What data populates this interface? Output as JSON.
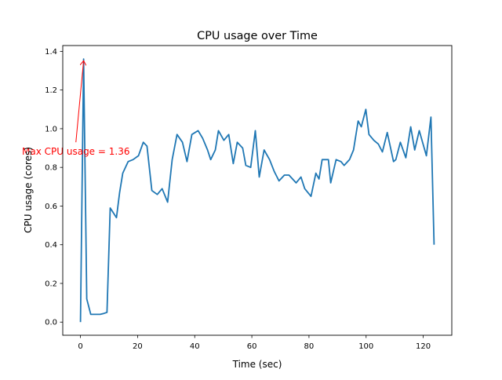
{
  "chart_data": {
    "type": "line",
    "title": "CPU usage over Time",
    "xlabel": "Time (sec)",
    "ylabel": "CPU usage (cores)",
    "xlim": [
      -6.2,
      130
    ],
    "ylim": [
      -0.068,
      1.43
    ],
    "xticks": [
      0,
      20,
      40,
      60,
      80,
      100,
      120
    ],
    "yticks": [
      0.0,
      0.2,
      0.4,
      0.6,
      0.8,
      1.0,
      1.2,
      1.4
    ],
    "xtick_labels": [
      "0",
      "20",
      "40",
      "60",
      "80",
      "100",
      "120"
    ],
    "ytick_labels": [
      "0.0",
      "0.2",
      "0.4",
      "0.6",
      "0.8",
      "1.0",
      "1.2",
      "1.4"
    ],
    "grid": false,
    "line_color": "#1f77b4",
    "annotation": {
      "text": "Max CPU usage = 1.36",
      "xy": [
        1.1,
        1.36
      ],
      "xytext": [
        -1.6,
        0.93
      ],
      "color": "#ff0000"
    },
    "series": [
      {
        "name": "CPU usage",
        "x": [
          0,
          1.1,
          2.2,
          3.6,
          4.9,
          6.9,
          8.2,
          9.3,
          10.4,
          12.6,
          13.7,
          14.8,
          16.7,
          18.4,
          20.3,
          22.0,
          23.3,
          25.0,
          26.9,
          28.6,
          30.5,
          32.1,
          33.8,
          35.7,
          37.3,
          39.0,
          41.2,
          42.8,
          44.5,
          45.6,
          47.2,
          48.3,
          50.2,
          51.9,
          53.5,
          54.9,
          56.8,
          57.9,
          59.6,
          61.2,
          62.6,
          64.3,
          66.2,
          67.8,
          69.5,
          71.4,
          73.0,
          75.5,
          77.2,
          78.5,
          80.7,
          82.4,
          83.5,
          84.6,
          86.8,
          87.6,
          89.5,
          91.2,
          92.3,
          94.2,
          95.6,
          97.2,
          98.3,
          99.9,
          101.0,
          102.7,
          104.3,
          105.7,
          107.4,
          109.6,
          110.4,
          112.0,
          113.9,
          115.6,
          117.0,
          118.6,
          121.1,
          122.7,
          123.8
        ],
        "y": [
          0.0,
          1.36,
          0.12,
          0.04,
          0.04,
          0.04,
          0.045,
          0.05,
          0.59,
          0.54,
          0.67,
          0.77,
          0.83,
          0.84,
          0.86,
          0.93,
          0.91,
          0.68,
          0.66,
          0.69,
          0.62,
          0.84,
          0.97,
          0.93,
          0.83,
          0.97,
          0.99,
          0.95,
          0.89,
          0.84,
          0.89,
          0.99,
          0.94,
          0.97,
          0.82,
          0.93,
          0.9,
          0.81,
          0.8,
          0.99,
          0.75,
          0.89,
          0.84,
          0.78,
          0.73,
          0.76,
          0.76,
          0.72,
          0.75,
          0.69,
          0.65,
          0.77,
          0.74,
          0.84,
          0.84,
          0.72,
          0.84,
          0.83,
          0.81,
          0.84,
          0.89,
          1.04,
          1.01,
          1.1,
          0.97,
          0.94,
          0.92,
          0.88,
          0.98,
          0.83,
          0.84,
          0.93,
          0.85,
          1.01,
          0.89,
          0.99,
          0.86,
          1.06,
          0.4
        ]
      }
    ]
  }
}
